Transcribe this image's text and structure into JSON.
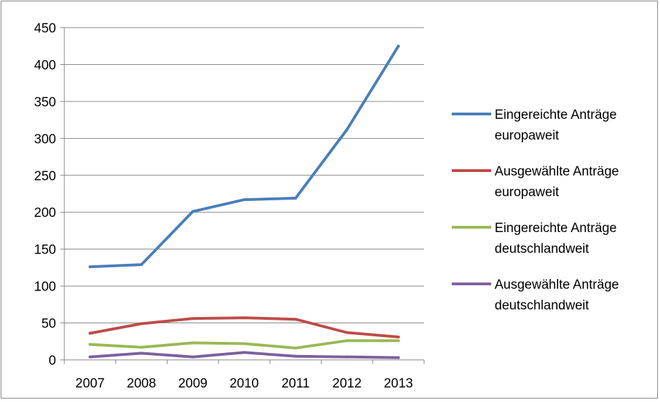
{
  "chart_data": {
    "type": "line",
    "title": "",
    "xlabel": "",
    "ylabel": "",
    "categories": [
      "2007",
      "2008",
      "2009",
      "2010",
      "2011",
      "2012",
      "2013"
    ],
    "ylim": [
      0,
      450
    ],
    "yticks": [
      0,
      50,
      100,
      150,
      200,
      250,
      300,
      350,
      400,
      450
    ],
    "grid": true,
    "legend_position": "right",
    "series": [
      {
        "name": [
          "Eingereichte Anträge",
          "europaweit"
        ],
        "color": "#4a7ebb",
        "values": [
          126,
          129,
          201,
          217,
          219,
          312,
          425
        ]
      },
      {
        "name": [
          "Ausgewählte Anträge",
          "europaweit"
        ],
        "color": "#be4b48",
        "values": [
          36,
          49,
          56,
          57,
          55,
          37,
          31
        ]
      },
      {
        "name": [
          "Eingereichte Anträge",
          "deutschlandweit"
        ],
        "color": "#98b954",
        "values": [
          21,
          17,
          23,
          22,
          16,
          26,
          26
        ]
      },
      {
        "name": [
          "Ausgewählte Anträge",
          "deutschlandweit"
        ],
        "color": "#7d60a0",
        "values": [
          4,
          9,
          4,
          10,
          5,
          4,
          3
        ]
      }
    ]
  }
}
